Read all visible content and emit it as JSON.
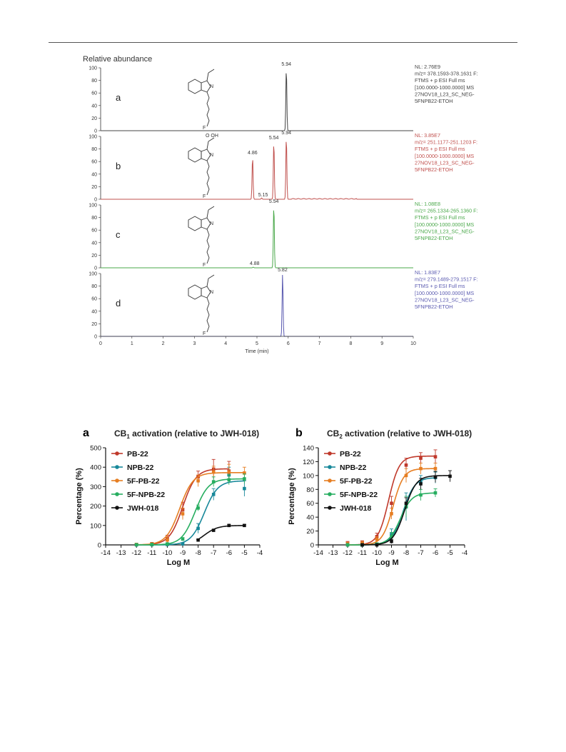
{
  "chart_data": [
    {
      "type": "line",
      "chart": "chromatograms",
      "ylabel": "Relative abundance",
      "xlabel": "Time (min)",
      "xlim": [
        0,
        10
      ],
      "x_ticks": [
        "0",
        "1",
        "2",
        "3",
        "4",
        "5",
        "6",
        "7",
        "8",
        "9",
        "10"
      ],
      "ylim": [
        0,
        100
      ],
      "y_ticks": [
        "0",
        "20",
        "40",
        "60",
        "80",
        "100"
      ],
      "panels": [
        {
          "letter": "a",
          "color": "#444444",
          "peaks": [
            {
              "x": 5.94,
              "y": 100,
              "label": "5.94"
            }
          ],
          "info": [
            "NL: 2.76E9",
            "m/z= 378.1593-378.1631 F:",
            "FTMS + p ESI Full ms",
            "[100.0000-1000.0000] MS",
            "27NOV18_L23_SC_NEG-",
            "5FNPB22-ETOH"
          ],
          "structure_atom": "F"
        },
        {
          "letter": "b",
          "color": "#c0504d",
          "peaks": [
            {
              "x": 4.86,
              "y": 68,
              "label": "4.86"
            },
            {
              "x": 5.15,
              "y": 2,
              "label": "5.15"
            },
            {
              "x": 5.54,
              "y": 92,
              "label": "5.54"
            },
            {
              "x": 5.94,
              "y": 100,
              "label": "5.94"
            }
          ],
          "info": [
            "NL: 3.85E7",
            "m/z= 251.1177-251.1203 F:",
            "FTMS + p ESI Full ms",
            "[100.0000-1000.0000] MS",
            "27NOV18_L23_SC_NEG-",
            "5FNPB22-ETOH"
          ],
          "structure_atom": "F",
          "structure_label": "O   OH"
        },
        {
          "letter": "c",
          "color": "#4aa84a",
          "peaks": [
            {
              "x": 4.88,
              "y": 1,
              "label": "4.88"
            },
            {
              "x": 5.54,
              "y": 100,
              "label": "5.54"
            }
          ],
          "info": [
            "NL: 1.08E8",
            "m/z= 265.1334-265.1360 F:",
            "FTMS + p ESI Full ms",
            "[100.0000-1000.0000] MS",
            "27NOV18_L23_SC_NEG-",
            "5FNPB22-ETOH"
          ],
          "structure_atom": "F"
        },
        {
          "letter": "d",
          "color": "#5a5ab0",
          "peaks": [
            {
              "x": 5.82,
              "y": 100,
              "label": "5.82"
            }
          ],
          "info": [
            "NL: 1.83E7",
            "m/z= 279.1489-279.1517 F:",
            "FTMS + p ESI Full ms",
            "[100.0000-1000.0000] MS",
            "27NOV18_L23_SC_NEG-",
            "5FNPB22-ETOH"
          ],
          "structure_atom": "F"
        }
      ]
    },
    {
      "type": "line",
      "chart": "cb1",
      "letter": "a",
      "title": "CB1 activation (relative to JWH-018)",
      "title_main": "CB",
      "title_sub": "1",
      "title_rest": " activation (relative to JWH-018)",
      "xlabel": "Log M",
      "ylabel": "Percentage (%)",
      "xlim": [
        -14,
        -4
      ],
      "ylim": [
        0,
        500
      ],
      "x_ticks": [
        "-14",
        "-13",
        "-12",
        "-11",
        "-10",
        "-9",
        "-8",
        "-7",
        "-6",
        "-5",
        "-4"
      ],
      "y_ticks": [
        "0",
        "100",
        "200",
        "300",
        "400",
        "500"
      ],
      "legend": "top-left",
      "series": [
        {
          "name": "PB-22",
          "color": "#c0392b",
          "x": [
            -12,
            -11,
            -10,
            -9,
            -8,
            -7,
            -6
          ],
          "y": [
            2,
            5,
            30,
            180,
            350,
            390,
            380
          ],
          "err": [
            5,
            8,
            20,
            40,
            30,
            50,
            50
          ],
          "top": 392,
          "ec50": -9.0,
          "hill": 1.0
        },
        {
          "name": "NPB-22",
          "color": "#17889a",
          "x": [
            -12,
            -11,
            -10,
            -9,
            -8,
            -7,
            -6,
            -5
          ],
          "y": [
            0,
            1,
            2,
            5,
            85,
            260,
            360,
            290
          ],
          "err": [
            3,
            3,
            3,
            5,
            25,
            30,
            40,
            40
          ],
          "top": 330,
          "ec50": -7.6,
          "hill": 1.0
        },
        {
          "name": "5F-PB-22",
          "color": "#e67e22",
          "x": [
            -12,
            -11,
            -10,
            -9,
            -8,
            -7,
            -6,
            -5
          ],
          "y": [
            2,
            5,
            25,
            160,
            330,
            375,
            375,
            370
          ],
          "err": [
            5,
            6,
            15,
            30,
            30,
            30,
            40,
            30
          ],
          "top": 372,
          "ec50": -9.2,
          "hill": 1.0
        },
        {
          "name": "5F-NPB-22",
          "color": "#27ae60",
          "x": [
            -12,
            -11,
            -10,
            -9,
            -8,
            -7,
            -6,
            -5
          ],
          "y": [
            1,
            2,
            5,
            30,
            190,
            325,
            335,
            340
          ],
          "err": [
            3,
            3,
            5,
            8,
            15,
            25,
            25,
            25
          ],
          "top": 340,
          "ec50": -8.2,
          "hill": 1.0
        },
        {
          "name": "JWH-018",
          "color": "#111111",
          "x": [
            -8,
            -7,
            -6,
            -5
          ],
          "y": [
            25,
            75,
            100,
            100
          ],
          "err": [
            3,
            5,
            5,
            5
          ],
          "top": 100,
          "ec50": -7.6,
          "hill": 1.0
        }
      ]
    },
    {
      "type": "line",
      "chart": "cb2",
      "letter": "b",
      "title": "CB2 activation (relative to JWH-018)",
      "title_main": "CB",
      "title_sub": "2",
      "title_rest": " activation (relative to JWH-018)",
      "xlabel": "Log M",
      "ylabel": "Percentage (%)",
      "xlim": [
        -14,
        -4
      ],
      "ylim": [
        0,
        140
      ],
      "x_ticks": [
        "-14",
        "-13",
        "-12",
        "-11",
        "-10",
        "-9",
        "-8",
        "-7",
        "-6",
        "-5",
        "-4"
      ],
      "y_ticks": [
        "0",
        "20",
        "40",
        "60",
        "80",
        "100",
        "120",
        "140"
      ],
      "legend": "top-left",
      "series": [
        {
          "name": "PB-22",
          "color": "#c0392b",
          "x": [
            -12,
            -11,
            -10,
            -9,
            -8,
            -7,
            -6
          ],
          "y": [
            2,
            3,
            12,
            60,
            115,
            125,
            127
          ],
          "err": [
            3,
            3,
            5,
            10,
            10,
            8,
            10
          ],
          "top": 128,
          "ec50": -9.2,
          "hill": 1.2
        },
        {
          "name": "NPB-22",
          "color": "#17889a",
          "x": [
            -12,
            -11,
            -10,
            -9,
            -8,
            -7,
            -6
          ],
          "y": [
            0,
            0,
            1,
            15,
            55,
            90,
            97
          ],
          "err": [
            2,
            2,
            2,
            8,
            20,
            10,
            8
          ],
          "top": 97,
          "ec50": -8.2,
          "hill": 1.1
        },
        {
          "name": "5F-PB-22",
          "color": "#e67e22",
          "x": [
            -12,
            -11,
            -10,
            -9,
            -8,
            -7,
            -6
          ],
          "y": [
            1,
            2,
            8,
            45,
            100,
            110,
            110
          ],
          "err": [
            3,
            3,
            4,
            8,
            10,
            8,
            8
          ],
          "top": 110,
          "ec50": -8.9,
          "hill": 1.2
        },
        {
          "name": "5F-NPB-22",
          "color": "#27ae60",
          "x": [
            -12,
            -11,
            -10,
            -9,
            -8,
            -7,
            -6
          ],
          "y": [
            0,
            0,
            1,
            12,
            55,
            72,
            75
          ],
          "err": [
            2,
            2,
            2,
            6,
            15,
            8,
            6
          ],
          "top": 75,
          "ec50": -8.4,
          "hill": 1.1
        },
        {
          "name": "JWH-018",
          "color": "#111111",
          "x": [
            -11,
            -10,
            -9,
            -8,
            -7,
            -6,
            -5
          ],
          "y": [
            0,
            0,
            5,
            60,
            88,
            98,
            99
          ],
          "err": [
            2,
            2,
            3,
            8,
            8,
            8,
            8
          ],
          "top": 100,
          "ec50": -8.1,
          "hill": 1.1
        }
      ]
    }
  ]
}
